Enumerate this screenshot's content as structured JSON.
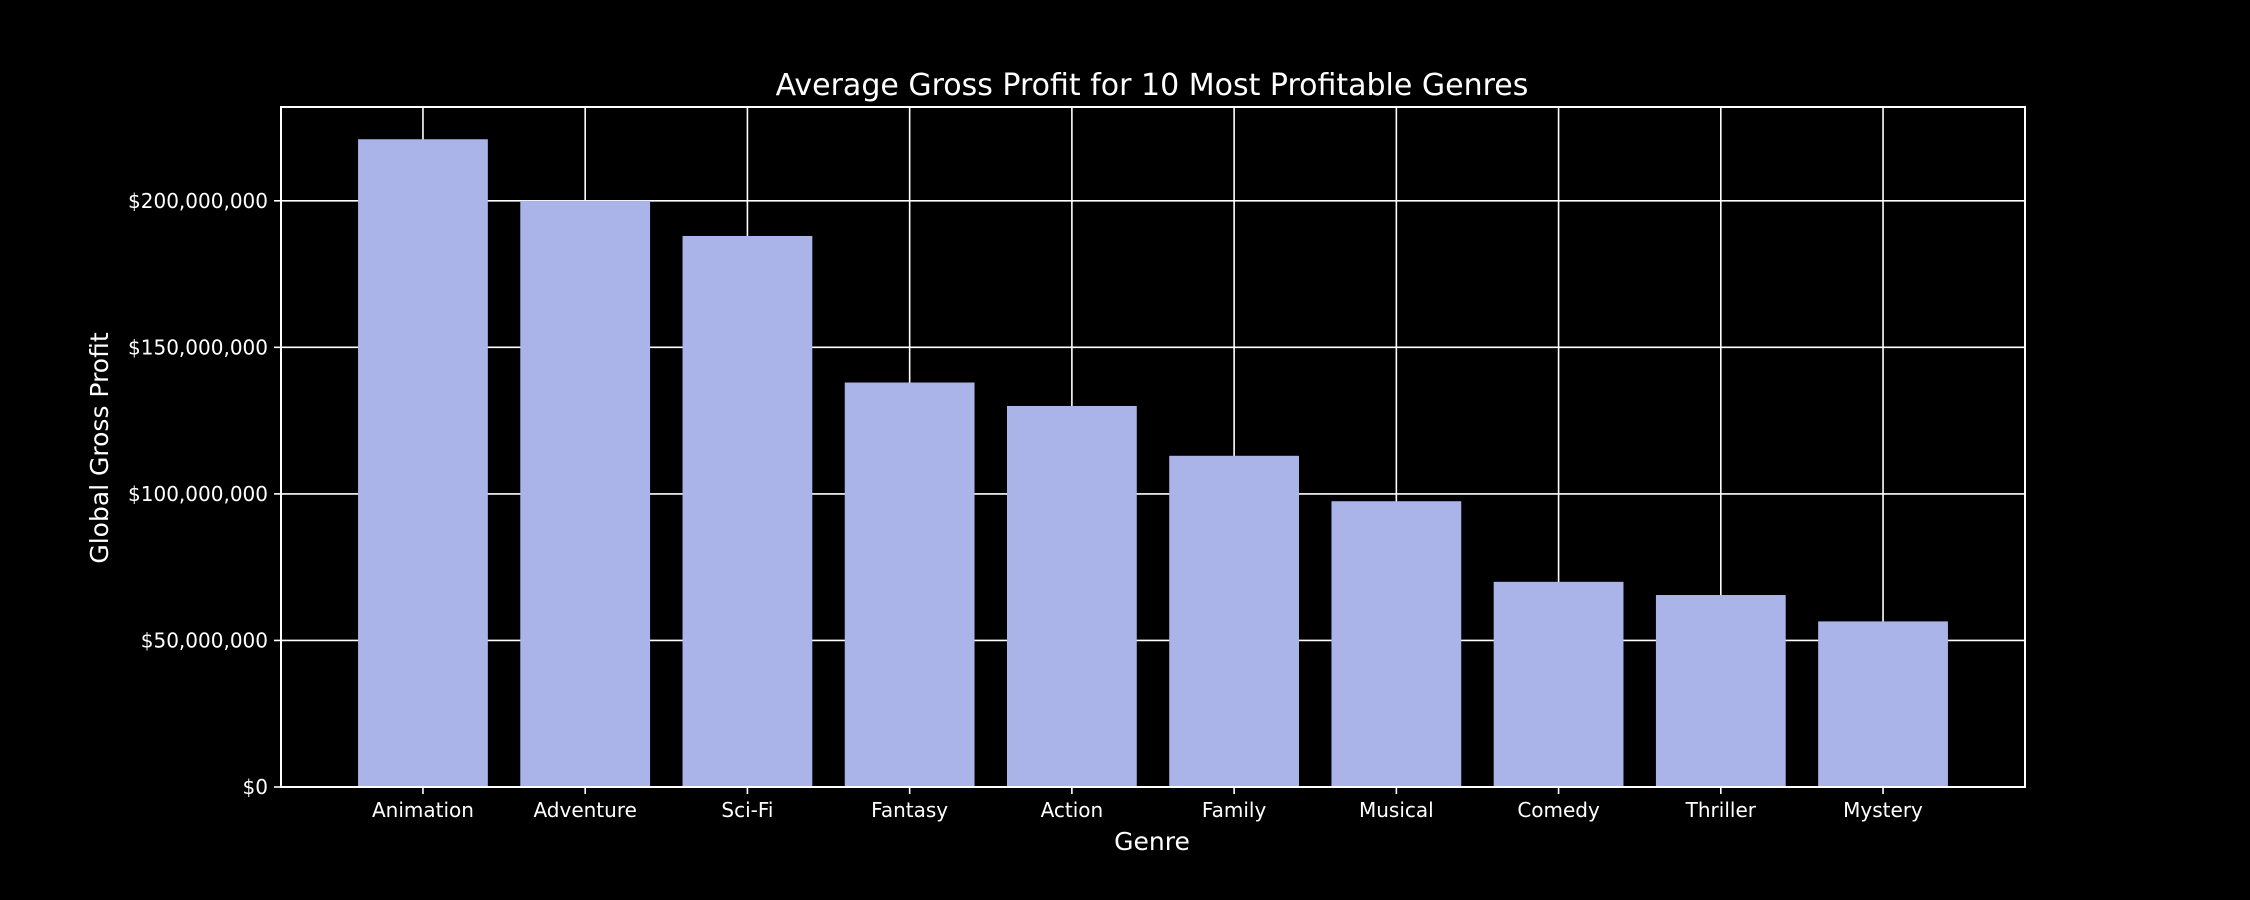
{
  "chart_data": {
    "type": "bar",
    "title": "Average Gross Profit for 10 Most Profitable Genres",
    "xlabel": "Genre",
    "ylabel": "Global Gross Profit",
    "categories": [
      "Animation",
      "Adventure",
      "Sci-Fi",
      "Fantasy",
      "Action",
      "Family",
      "Musical",
      "Comedy",
      "Thriller",
      "Mystery"
    ],
    "values": [
      221000000,
      200000000,
      188000000,
      138000000,
      130000000,
      113000000,
      97500000,
      70000000,
      65500000,
      56500000
    ],
    "ylim": [
      0,
      232000000
    ],
    "yticks": [
      0,
      50000000,
      100000000,
      150000000,
      200000000
    ],
    "ytick_labels": [
      "$0",
      "$50,000,000",
      "$100,000,000",
      "$150,000,000",
      "$200,000,000"
    ],
    "grid": true,
    "colors": {
      "background": "#000000",
      "bar": "#aab4e8",
      "grid": "#ffffff",
      "text": "#ffffff"
    }
  }
}
